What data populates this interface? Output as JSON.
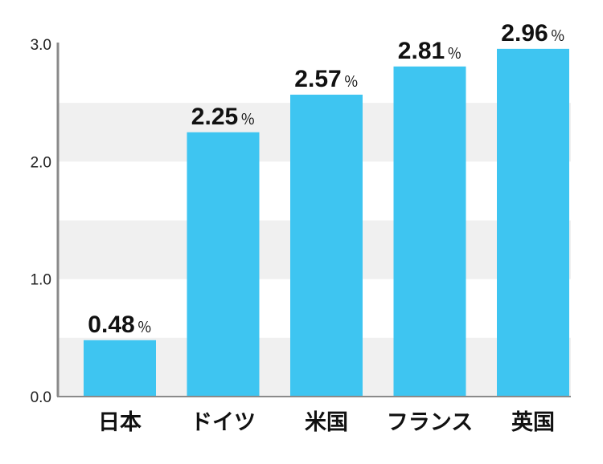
{
  "chart_data": {
    "type": "bar",
    "categories": [
      "日本",
      "ドイツ",
      "米国",
      "フランス",
      "英国"
    ],
    "values": [
      0.48,
      2.25,
      2.57,
      2.81,
      2.96
    ],
    "value_labels": [
      "0.48",
      "2.25",
      "2.57",
      "2.81",
      "2.96"
    ],
    "value_unit": "％",
    "y_ticks": [
      "0.0",
      "1.0",
      "2.0",
      "3.0"
    ],
    "ylim": [
      0,
      3.0
    ],
    "title": "",
    "xlabel": "",
    "ylabel": "",
    "grid": "alternating horizontal bands",
    "legend": "none",
    "colors": {
      "bar": "#3EC5F1",
      "band": "#F0F0F0",
      "axis": "#8A8A8A"
    }
  }
}
